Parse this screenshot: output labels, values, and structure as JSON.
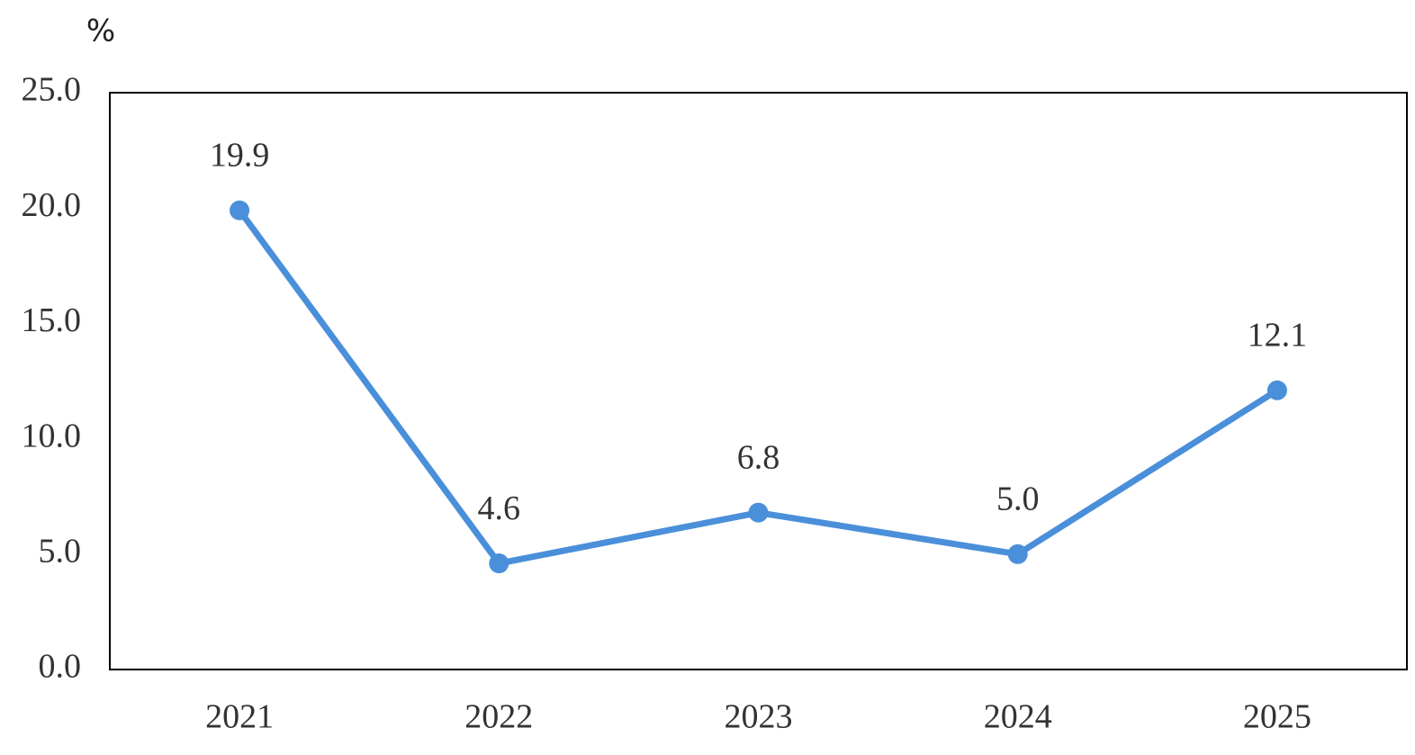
{
  "chart_data": {
    "type": "line",
    "y_label": "%",
    "categories": [
      "2021",
      "2022",
      "2023",
      "2024",
      "2025"
    ],
    "series": [
      {
        "name": null,
        "color": "#4a8fd9",
        "values": [
          19.9,
          4.6,
          6.8,
          5.0,
          12.1
        ],
        "value_labels": [
          "19.9",
          "4.6",
          "6.8",
          "5.0",
          "12.1"
        ]
      }
    ],
    "ylim": [
      0,
      25
    ],
    "yticks": [
      {
        "value": 0,
        "label": "0.0"
      },
      {
        "value": 5,
        "label": "5.0"
      },
      {
        "value": 10,
        "label": "10.0"
      },
      {
        "value": 15,
        "label": "15.0"
      },
      {
        "value": 20,
        "label": "20.0"
      },
      {
        "value": 25,
        "label": "25.0"
      }
    ],
    "grid": false
  }
}
